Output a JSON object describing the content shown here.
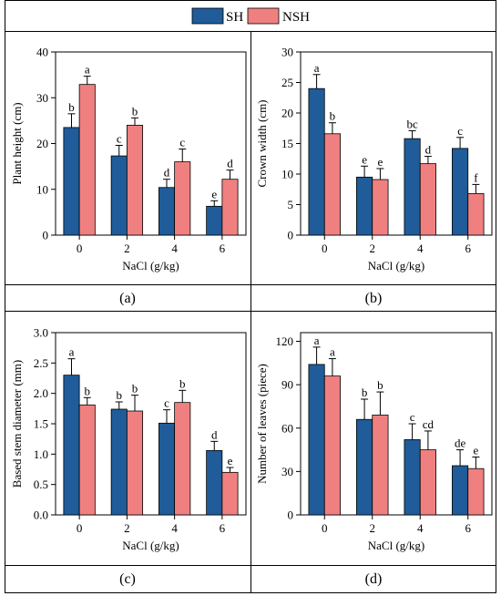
{
  "colors": {
    "SH": "#1f5c99",
    "NSH": "#f08080",
    "frame": "#000000"
  },
  "legend": {
    "items": [
      "SH",
      "NSH"
    ]
  },
  "chart_data": [
    {
      "type": "bar",
      "panel": "(a)",
      "xlabel": "NaCl (g/kg)",
      "ylabel": "Plant height (cm)",
      "categories": [
        "0",
        "2",
        "4",
        "6"
      ],
      "ylim": [
        0,
        40
      ],
      "yticks": [
        0,
        10,
        20,
        30,
        40
      ],
      "series": [
        {
          "name": "SH",
          "values": [
            23.5,
            17.3,
            10.4,
            6.3
          ],
          "errors": [
            3.0,
            2.3,
            1.8,
            1.2
          ],
          "letters": [
            "b",
            "c",
            "d",
            "e"
          ]
        },
        {
          "name": "NSH",
          "values": [
            32.9,
            24.0,
            16.0,
            12.2
          ],
          "errors": [
            1.8,
            1.6,
            2.8,
            2.0
          ],
          "letters": [
            "a",
            "b",
            "c",
            "d"
          ]
        }
      ]
    },
    {
      "type": "bar",
      "panel": "(b)",
      "xlabel": "NaCl (g/kg)",
      "ylabel": "Crown width (cm)",
      "categories": [
        "0",
        "2",
        "4",
        "6"
      ],
      "ylim": [
        0,
        30
      ],
      "yticks": [
        0,
        5,
        10,
        15,
        20,
        25,
        30
      ],
      "series": [
        {
          "name": "SH",
          "values": [
            24.0,
            9.5,
            15.8,
            14.2
          ],
          "errors": [
            2.3,
            1.8,
            1.3,
            1.8
          ],
          "letters": [
            "a",
            "e",
            "bc",
            "c"
          ]
        },
        {
          "name": "NSH",
          "values": [
            16.6,
            9.1,
            11.7,
            6.8
          ],
          "errors": [
            1.8,
            1.8,
            1.2,
            1.5
          ],
          "letters": [
            "b",
            "e",
            "d",
            "f"
          ]
        }
      ]
    },
    {
      "type": "bar",
      "panel": "(c)",
      "xlabel": "NaCl (g/kg)",
      "ylabel": "Based stem diameter (mm)",
      "categories": [
        "0",
        "2",
        "4",
        "6"
      ],
      "ylim": [
        0,
        3.0
      ],
      "yticks": [
        "0.0",
        "0.5",
        "1.0",
        "1.5",
        "2.0",
        "2.5",
        "3.0"
      ],
      "series": [
        {
          "name": "SH",
          "values": [
            2.3,
            1.74,
            1.51,
            1.06
          ],
          "errors": [
            0.27,
            0.12,
            0.22,
            0.15
          ],
          "letters": [
            "a",
            "b",
            "c",
            "d"
          ]
        },
        {
          "name": "NSH",
          "values": [
            1.81,
            1.71,
            1.85,
            0.7
          ],
          "errors": [
            0.12,
            0.26,
            0.2,
            0.08
          ],
          "letters": [
            "b",
            "b",
            "b",
            "e"
          ]
        }
      ]
    },
    {
      "type": "bar",
      "panel": "(d)",
      "xlabel": "NaCl (g/kg)",
      "ylabel": "Number of leaves (piece)",
      "categories": [
        "0",
        "2",
        "4",
        "6"
      ],
      "ylim": [
        0,
        126
      ],
      "yticks": [
        0,
        30,
        60,
        90,
        120
      ],
      "series": [
        {
          "name": "SH",
          "values": [
            104,
            66,
            52,
            34
          ],
          "errors": [
            12,
            14,
            11,
            11
          ],
          "letters": [
            "a",
            "b",
            "c",
            "de"
          ]
        },
        {
          "name": "NSH",
          "values": [
            96,
            69,
            45,
            32
          ],
          "errors": [
            12,
            16,
            13,
            8
          ],
          "letters": [
            "a",
            "b",
            "cd",
            "e"
          ]
        }
      ]
    }
  ]
}
